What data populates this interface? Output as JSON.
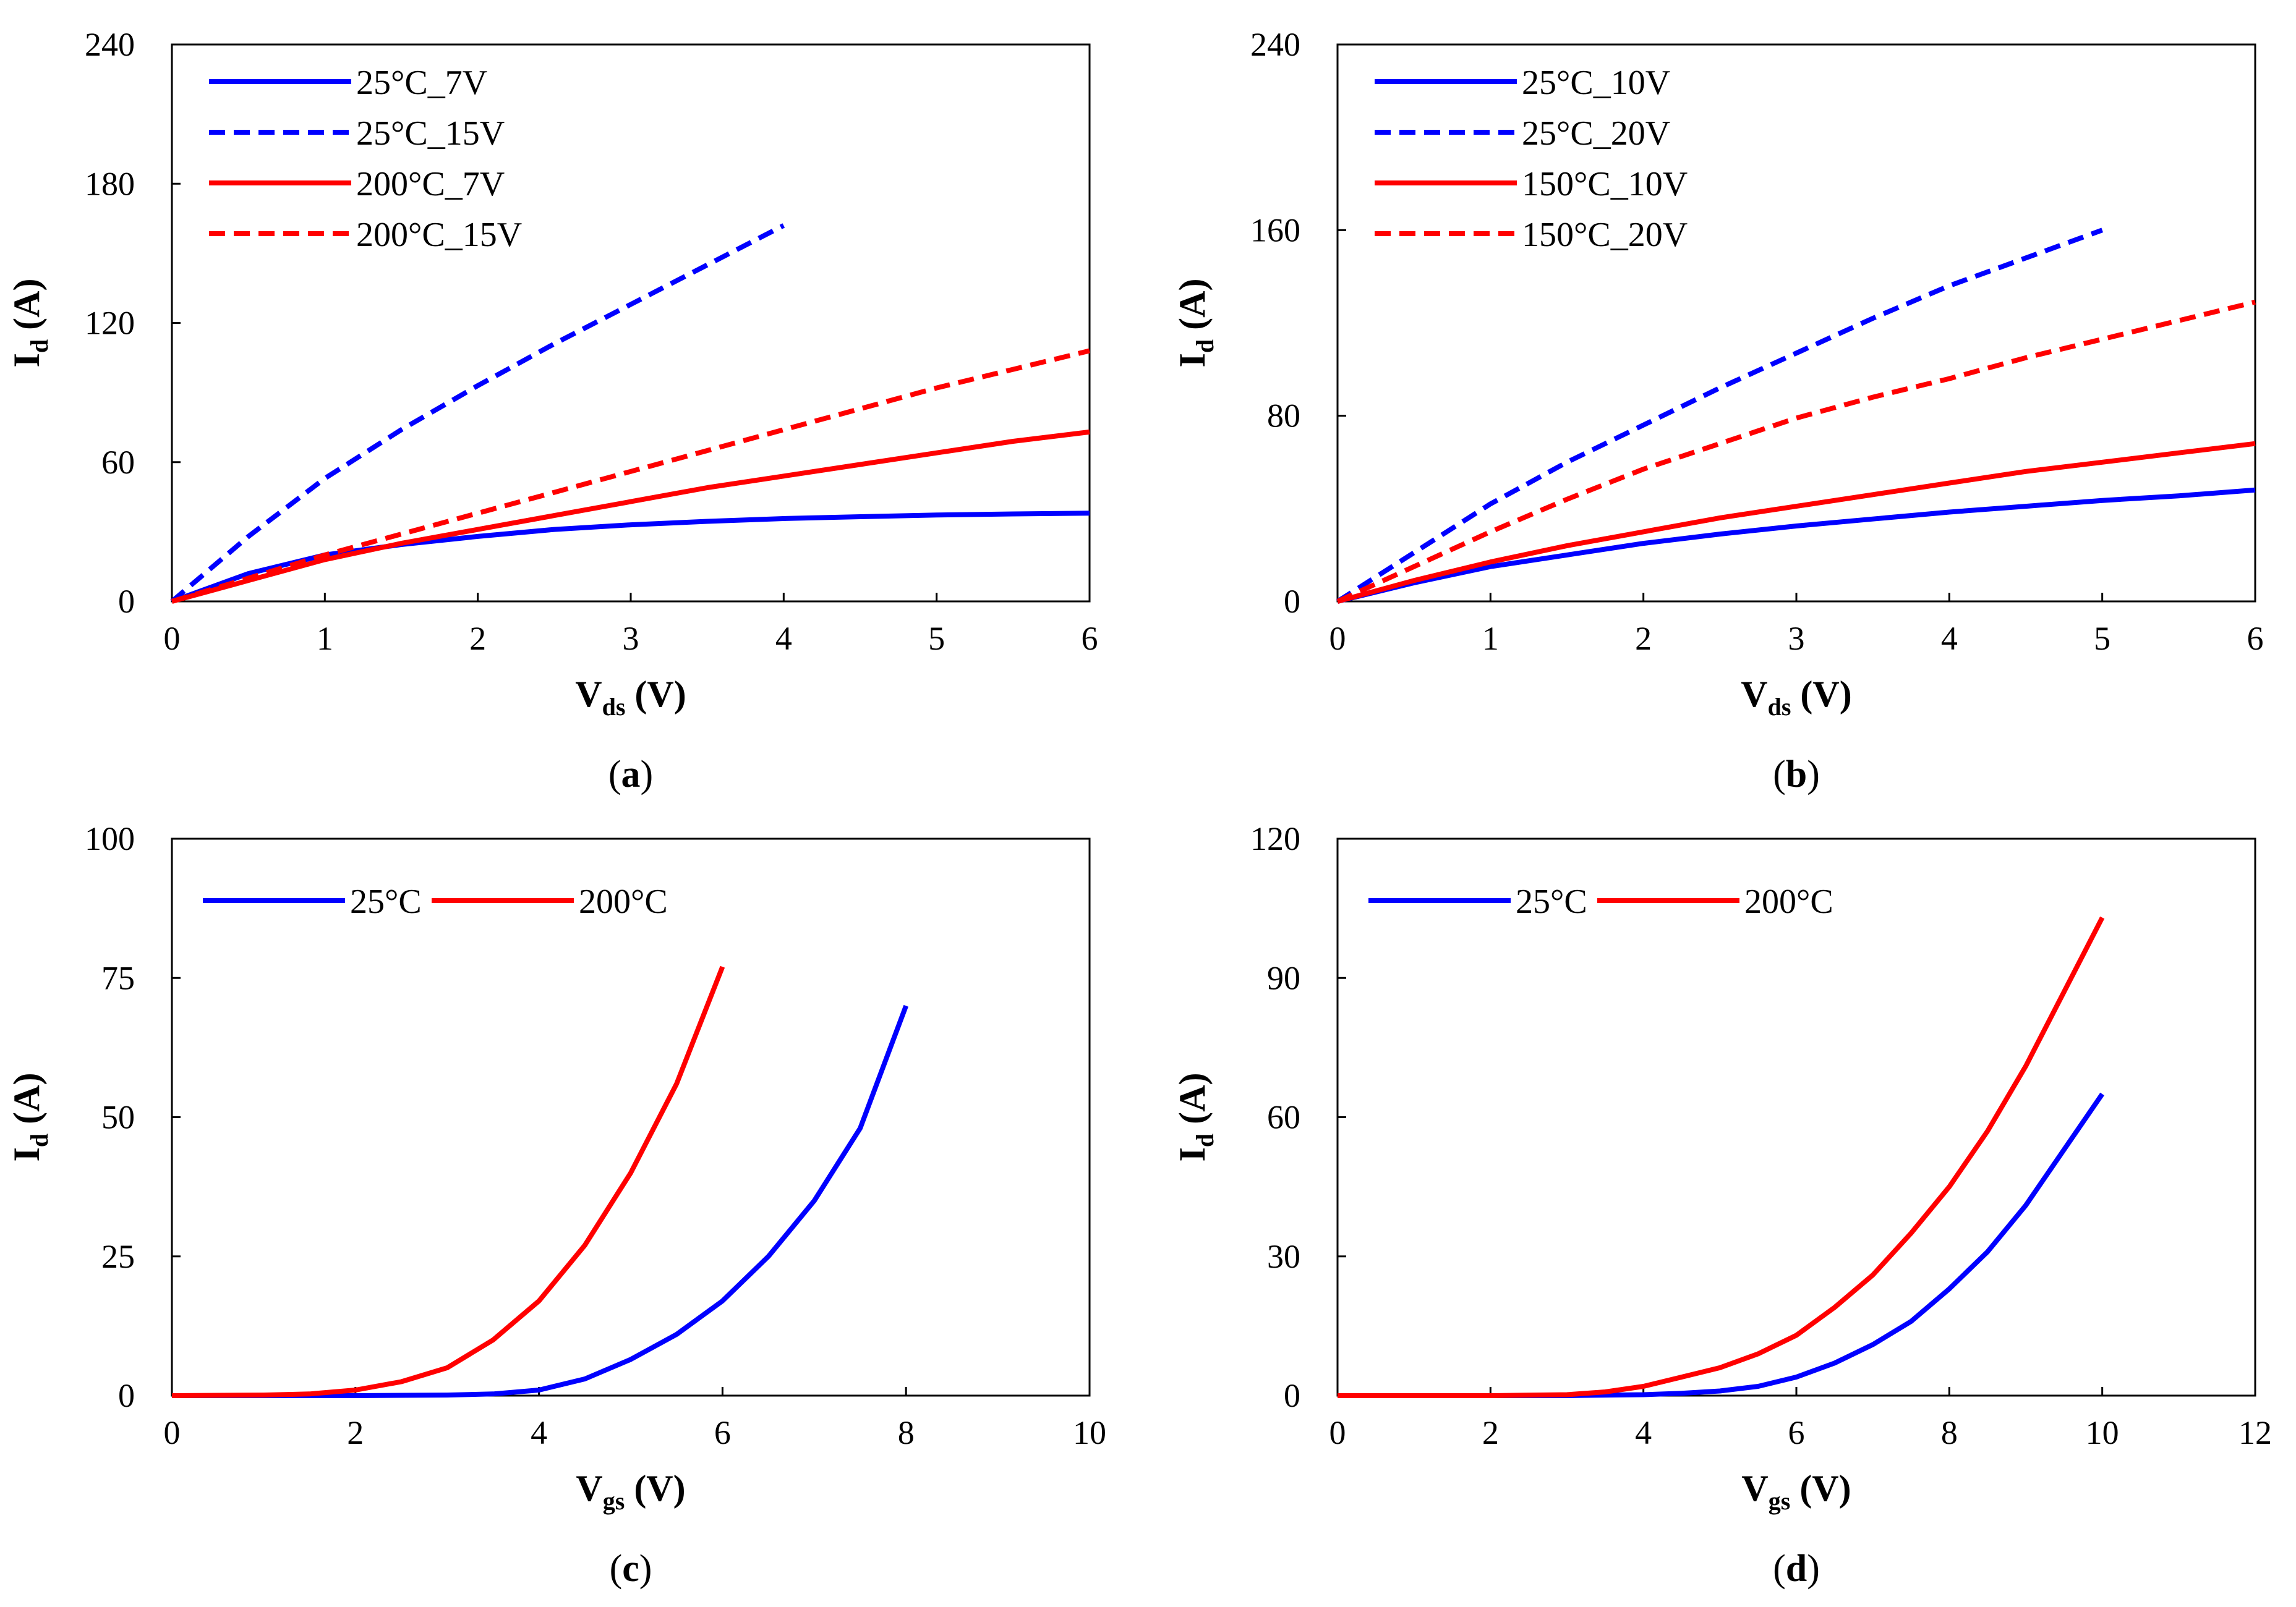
{
  "colors": {
    "blue": "#0000ff",
    "red": "#ff0000",
    "frame": "#000000"
  },
  "chart_data": [
    {
      "id": "a",
      "type": "line",
      "caption_letter": "a",
      "xlabel": {
        "main": "V",
        "sub": "ds",
        "unit": " (V)"
      },
      "ylabel": {
        "main": "I",
        "sub": "d",
        "unit": " (A)"
      },
      "xlim": [
        0,
        6
      ],
      "ylim": [
        0,
        240
      ],
      "xticks": [
        0,
        1,
        2,
        3,
        4,
        5,
        6
      ],
      "yticks": [
        0,
        60,
        120,
        180,
        240
      ],
      "grid": false,
      "legend_position": "top-left",
      "series": [
        {
          "name": "25°C_7V",
          "color": "#0000ff",
          "dash": false,
          "x": [
            0,
            0.5,
            1,
            1.5,
            2,
            2.5,
            3,
            3.5,
            4,
            4.5,
            5,
            5.5,
            6
          ],
          "y": [
            0,
            12,
            20,
            24.5,
            28,
            31,
            33,
            34.5,
            35.7,
            36.5,
            37.2,
            37.7,
            38
          ]
        },
        {
          "name": "25°C_15V",
          "color": "#0000ff",
          "dash": true,
          "x": [
            0,
            0.5,
            1,
            1.5,
            2,
            2.5,
            3,
            3.5,
            4
          ],
          "y": [
            0,
            28,
            53,
            74,
            93,
            111,
            128,
            145,
            162
          ]
        },
        {
          "name": "200°C_7V",
          "color": "#ff0000",
          "dash": false,
          "x": [
            0,
            0.5,
            1,
            1.5,
            2,
            2.5,
            3,
            3.5,
            4,
            4.5,
            5,
            5.5,
            6
          ],
          "y": [
            0,
            9,
            18,
            25,
            31,
            37,
            43,
            49,
            54,
            59,
            64,
            69,
            73
          ]
        },
        {
          "name": "200°C_15V",
          "color": "#ff0000",
          "dash": true,
          "x": [
            0,
            0.5,
            1,
            1.5,
            2,
            2.5,
            3,
            3.5,
            4,
            4.5,
            5,
            5.5,
            6
          ],
          "y": [
            0,
            10,
            20,
            29,
            38,
            47,
            56,
            65,
            74,
            83,
            92,
            100,
            108
          ]
        }
      ]
    },
    {
      "id": "b",
      "type": "line",
      "caption_letter": "b",
      "xlabel": {
        "main": "V",
        "sub": "ds",
        "unit": " (V)"
      },
      "ylabel": {
        "main": "I",
        "sub": "d",
        "unit": " (A)"
      },
      "xlim": [
        0,
        6
      ],
      "ylim": [
        0,
        240
      ],
      "xticks": [
        0,
        1,
        2,
        3,
        4,
        5,
        6
      ],
      "yticks": [
        0,
        80,
        160,
        240
      ],
      "grid": false,
      "legend_position": "top-left",
      "series": [
        {
          "name": "25°C_10V",
          "color": "#0000ff",
          "dash": false,
          "x": [
            0,
            0.5,
            1,
            1.5,
            2,
            2.5,
            3,
            3.5,
            4,
            4.5,
            5,
            5.5,
            6
          ],
          "y": [
            0,
            8,
            15,
            20,
            25,
            29,
            32.5,
            35.5,
            38.5,
            41,
            43.5,
            45.5,
            48
          ]
        },
        {
          "name": "25°C_20V",
          "color": "#0000ff",
          "dash": true,
          "x": [
            0,
            0.5,
            1,
            1.5,
            2,
            2.5,
            3,
            3.5,
            4,
            4.5,
            5
          ],
          "y": [
            0,
            21,
            42,
            60,
            76,
            92,
            107,
            122,
            136,
            148,
            160
          ]
        },
        {
          "name": "150°C_10V",
          "color": "#ff0000",
          "dash": false,
          "x": [
            0,
            0.5,
            1,
            1.5,
            2,
            2.5,
            3,
            3.5,
            4,
            4.5,
            5,
            5.5,
            6
          ],
          "y": [
            0,
            9,
            17,
            24,
            30,
            36,
            41,
            46,
            51,
            56,
            60,
            64,
            68
          ]
        },
        {
          "name": "150°C_20V",
          "color": "#ff0000",
          "dash": true,
          "x": [
            0,
            0.5,
            1,
            1.5,
            2,
            2.5,
            3,
            3.5,
            4,
            4.5,
            5,
            5.5,
            6
          ],
          "y": [
            0,
            15,
            30,
            44,
            57,
            68,
            79,
            88,
            96,
            105,
            113,
            121,
            129
          ]
        }
      ]
    },
    {
      "id": "c",
      "type": "line",
      "caption_letter": "c",
      "xlabel": {
        "main": "V",
        "sub": "gs",
        "unit": " (V)"
      },
      "ylabel": {
        "main": "I",
        "sub": "d",
        "unit": " (A)"
      },
      "xlim": [
        0,
        10
      ],
      "ylim": [
        0,
        100
      ],
      "xticks": [
        0,
        2,
        4,
        6,
        8,
        10
      ],
      "yticks": [
        0,
        25,
        50,
        75,
        100
      ],
      "grid": false,
      "legend_position": "top-left",
      "series": [
        {
          "name": "25°C",
          "color": "#0000ff",
          "dash": false,
          "x": [
            0,
            1,
            2,
            3,
            3.5,
            4,
            4.5,
            5,
            5.5,
            6,
            6.5,
            7,
            7.5,
            8
          ],
          "y": [
            0,
            0,
            0,
            0.1,
            0.3,
            1,
            3,
            6.5,
            11,
            17,
            25,
            35,
            48,
            70
          ]
        },
        {
          "name": "200°C",
          "color": "#ff0000",
          "dash": false,
          "x": [
            0,
            1,
            1.5,
            2,
            2.5,
            3,
            3.5,
            4,
            4.5,
            5,
            5.5,
            6
          ],
          "y": [
            0,
            0.1,
            0.3,
            1,
            2.5,
            5,
            10,
            17,
            27,
            40,
            56,
            77
          ]
        }
      ]
    },
    {
      "id": "d",
      "type": "line",
      "caption_letter": "d",
      "xlabel": {
        "main": "V",
        "sub": "gs",
        "unit": " (V)"
      },
      "ylabel": {
        "main": "I",
        "sub": "d",
        "unit": " (A)"
      },
      "xlim": [
        0,
        12
      ],
      "ylim": [
        0,
        120
      ],
      "xticks": [
        0,
        2,
        4,
        6,
        8,
        10,
        12
      ],
      "yticks": [
        0,
        30,
        60,
        90,
        120
      ],
      "grid": false,
      "legend_position": "top-left",
      "series": [
        {
          "name": "25°C",
          "color": "#0000ff",
          "dash": false,
          "x": [
            0,
            2,
            3,
            4,
            4.5,
            5,
            5.5,
            6,
            6.5,
            7,
            7.5,
            8,
            8.5,
            9,
            9.5,
            10
          ],
          "y": [
            0,
            0,
            0,
            0.2,
            0.5,
            1,
            2,
            4,
            7,
            11,
            16,
            23,
            31,
            41,
            53,
            65
          ]
        },
        {
          "name": "200°C",
          "color": "#ff0000",
          "dash": false,
          "x": [
            0,
            2,
            3,
            3.5,
            4,
            4.5,
            5,
            5.5,
            6,
            6.5,
            7,
            7.5,
            8,
            8.5,
            9,
            9.5,
            10
          ],
          "y": [
            0,
            0,
            0.2,
            0.8,
            2,
            4,
            6,
            9,
            13,
            19,
            26,
            35,
            45,
            57,
            71,
            87,
            103
          ]
        }
      ]
    }
  ]
}
